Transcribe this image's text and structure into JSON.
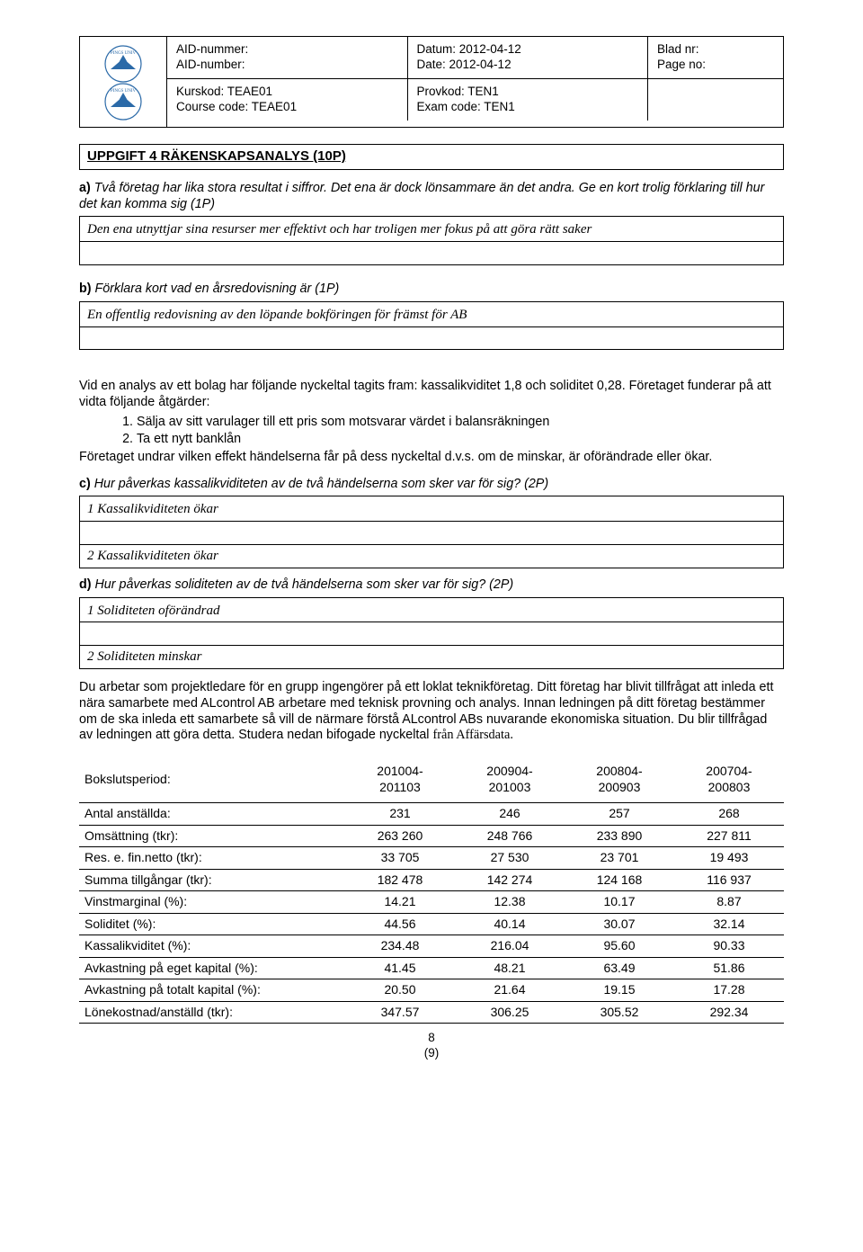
{
  "header": {
    "aid_l1": "AID-nummer:",
    "aid_l2": "AID-number:",
    "date_l1": "Datum: 2012-04-12",
    "date_l2": "Date: 2012-04-12",
    "page_l1": "Blad nr:",
    "page_l2": "Page no:",
    "course_l1": "Kurskod: TEAE01",
    "course_l2": "Course code: TEAE01",
    "exam_l1": "Provkod: TEN1",
    "exam_l2": "Exam code: TEN1"
  },
  "title": "UPPGIFT 4 RÄKENSKAPSANALYS (10P)",
  "qa": {
    "lead": "a)",
    "text": "Två företag har lika stora resultat i siffror. Det ena är dock lönsammare än det andra. Ge en kort trolig förklaring till hur det kan komma sig (1P)",
    "ans1": "Den ena utnyttjar sina resurser mer effektivt och har troligen mer fokus på att göra rätt saker",
    "ans2": ""
  },
  "qb": {
    "lead": "b)",
    "text": "Förklara kort vad en årsredovisning är (1P)",
    "ans1": "En offentlig redovisning av den löpande bokföringen för främst för AB",
    "ans2": ""
  },
  "mid": {
    "p1": "Vid en analys av ett bolag har följande nyckeltal tagits fram: kassalikviditet 1,8 och soliditet 0,28. Företaget funderar på att vidta följande åtgärder:",
    "li1": "Sälja av sitt varulager till ett pris som motsvarar värdet i balansräkningen",
    "li2": "Ta ett nytt banklån",
    "p2": "Företaget undrar vilken effekt händelserna får på dess nyckeltal d.v.s. om de minskar, är oförändrade eller ökar."
  },
  "qc": {
    "lead": "c)",
    "text": "Hur påverkas kassalikviditeten av de två händelserna som sker var för sig? (2P)",
    "ans1": "1 Kassalikviditeten ökar",
    "ans2": "",
    "ans3": "2 Kassalikviditeten ökar"
  },
  "qd": {
    "lead": "d)",
    "text": "Hur påverkas soliditeten av de två händelserna som sker var för sig? (2P)",
    "ans1": "1 Soliditeten oförändrad",
    "ans2": "",
    "ans3": "2 Soliditeten minskar"
  },
  "case": {
    "text_pre": "Du arbetar som projektledare för en grupp ingengörer på ett loklat teknikföretag. Ditt företag har blivit tillfrågat att inleda ett nära samarbete med ALcontrol AB arbetare med teknisk provning och analys. Innan ledningen på ditt företag bestämmer om de ska inleda ett samarbete så vill de närmare förstå ALcontrol ABs nuvarande ekonomiska situation. Du blir tillfrågad av ledningen att göra detta. Studera nedan bifogade nyckeltal ",
    "text_em": "från Affärsdata."
  },
  "fin": {
    "type": "table",
    "col_label": "Bokslutsperiod:",
    "periods": [
      {
        "l1": "201004-",
        "l2": "201103"
      },
      {
        "l1": "200904-",
        "l2": "201003"
      },
      {
        "l1": "200804-",
        "l2": "200903"
      },
      {
        "l1": "200704-",
        "l2": "200803"
      }
    ],
    "rows": [
      {
        "label": "Antal anställda:",
        "v": [
          "231",
          "246",
          "257",
          "268"
        ]
      },
      {
        "label": "Omsättning (tkr):",
        "v": [
          "263 260",
          "248 766",
          "233 890",
          "227 811"
        ]
      },
      {
        "label": "Res. e. fin.netto (tkr):",
        "v": [
          "33 705",
          "27 530",
          "23 701",
          "19 493"
        ]
      },
      {
        "label": "Summa tillgångar (tkr):",
        "v": [
          "182 478",
          "142 274",
          "124 168",
          "116 937"
        ]
      },
      {
        "label": "Vinstmarginal (%):",
        "v": [
          "14.21",
          "12.38",
          "10.17",
          "8.87"
        ]
      },
      {
        "label": "Soliditet (%):",
        "v": [
          "44.56",
          "40.14",
          "30.07",
          "32.14"
        ]
      },
      {
        "label": "Kassalikviditet (%):",
        "v": [
          "234.48",
          "216.04",
          "95.60",
          "90.33"
        ]
      },
      {
        "label": "Avkastning på eget kapital (%):",
        "v": [
          "41.45",
          "48.21",
          "63.49",
          "51.86"
        ]
      },
      {
        "label": "Avkastning på totalt kapital (%):",
        "v": [
          "20.50",
          "21.64",
          "19.15",
          "17.28"
        ]
      },
      {
        "label": "Lönekostnad/anställd (tkr):",
        "v": [
          "347.57",
          "306.25",
          "305.52",
          "292.34"
        ]
      }
    ]
  },
  "footer": {
    "page": "8",
    "of": "(9)"
  },
  "colors": {
    "logo_blue": "#2b6aa8",
    "logo_text": "#2b6aa8",
    "border": "#000000"
  }
}
